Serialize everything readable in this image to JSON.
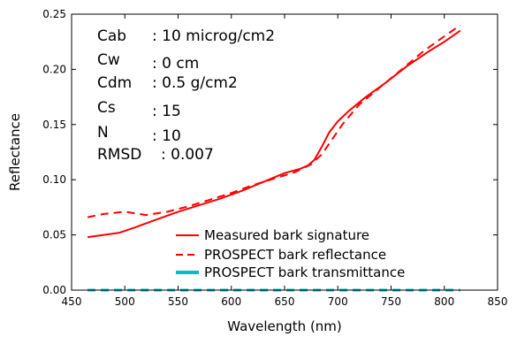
{
  "chart_data": {
    "type": "line",
    "xlabel": "Wavelength (nm)",
    "ylabel": "Reflectance",
    "xlim": [
      450,
      850
    ],
    "ylim": [
      0.0,
      0.25
    ],
    "xticks": [
      "450",
      "500",
      "550",
      "600",
      "650",
      "700",
      "750",
      "800",
      "850"
    ],
    "yticks": [
      "0.00",
      "0.05",
      "0.10",
      "0.15",
      "0.20",
      "0.25"
    ],
    "grid": false,
    "legend_position": "bottom-right",
    "annotations": [
      {
        "name": "Cab",
        "value": ": 10 microg/cm2"
      },
      {
        "name": "Cw",
        "value": ": 0 cm"
      },
      {
        "name": "Cdm",
        "value": ": 0.5 g/cm2"
      },
      {
        "name": "Cs",
        "value": ": 15"
      },
      {
        "name": "N",
        "value": ": 10"
      },
      {
        "name": "RMSD",
        "value": ": 0.007"
      }
    ],
    "series": [
      {
        "name": "Measured bark signature",
        "style": "solid",
        "color": "#ff0000",
        "x": [
          465,
          480,
          495,
          510,
          530,
          550,
          570,
          590,
          610,
          630,
          650,
          665,
          672,
          678,
          685,
          692,
          700,
          710,
          725,
          745,
          765,
          785,
          800,
          815
        ],
        "y": [
          0.048,
          0.05,
          0.052,
          0.057,
          0.064,
          0.071,
          0.077,
          0.083,
          0.09,
          0.098,
          0.106,
          0.11,
          0.113,
          0.118,
          0.13,
          0.143,
          0.153,
          0.162,
          0.174,
          0.188,
          0.203,
          0.216,
          0.225,
          0.235
        ]
      },
      {
        "name": "PROSPECT bark reflectance",
        "style": "dashed",
        "color": "#ff0000",
        "x": [
          465,
          480,
          500,
          520,
          540,
          560,
          580,
          600,
          620,
          640,
          660,
          675,
          685,
          695,
          705,
          720,
          740,
          760,
          780,
          800,
          815
        ],
        "y": [
          0.066,
          0.069,
          0.071,
          0.068,
          0.071,
          0.076,
          0.082,
          0.088,
          0.095,
          0.101,
          0.107,
          0.114,
          0.123,
          0.137,
          0.151,
          0.168,
          0.184,
          0.2,
          0.216,
          0.23,
          0.24
        ]
      },
      {
        "name": "PROSPECT bark transmittance",
        "style": "dashed",
        "color": "#00bfbf",
        "x": [
          465,
          815
        ],
        "y": [
          0.0,
          0.0
        ]
      }
    ]
  }
}
